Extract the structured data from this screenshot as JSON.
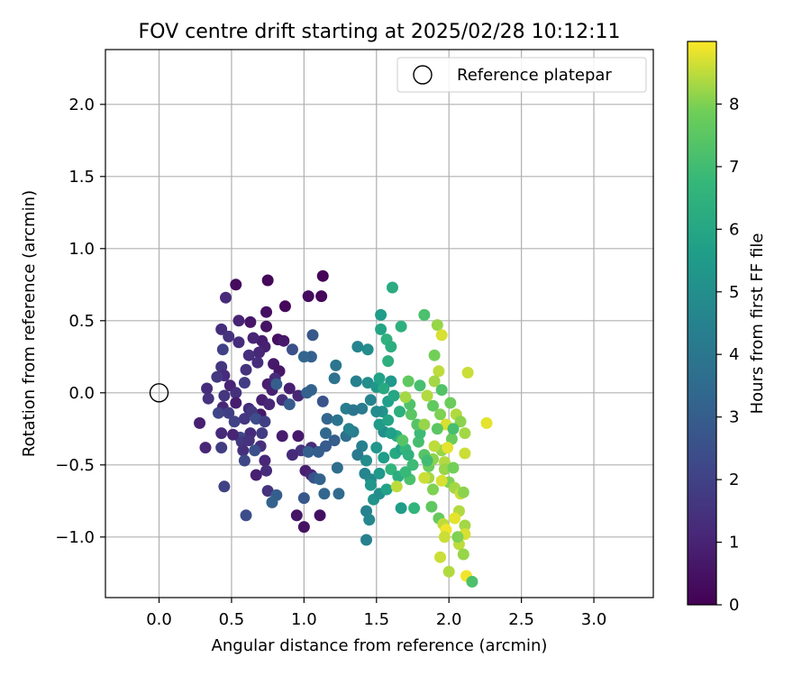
{
  "chart_data": {
    "type": "scatter",
    "title": "FOV centre drift starting at 2025/02/28 10:12:11",
    "xlabel": "Angular distance from reference (arcmin)",
    "ylabel": "Rotation from reference (arcmin)",
    "xlim": [
      -0.37,
      3.41
    ],
    "ylim": [
      -1.42,
      2.38
    ],
    "x_ticks": [
      0.0,
      0.5,
      1.0,
      1.5,
      2.0,
      2.5,
      3.0
    ],
    "x_tick_labels": [
      "0.0",
      "0.5",
      "1.0",
      "1.5",
      "2.0",
      "2.5",
      "3.0"
    ],
    "y_ticks": [
      -1.0,
      -0.5,
      0.0,
      0.5,
      1.0,
      1.5,
      2.0
    ],
    "y_tick_labels": [
      "−1.0",
      "−0.5",
      "0.0",
      "0.5",
      "1.0",
      "1.5",
      "2.0"
    ],
    "grid": true,
    "legend": {
      "placement": "upper-right",
      "entries": [
        "Reference platepar"
      ]
    },
    "reference_point": {
      "x": 0.0,
      "y": 0.0
    },
    "colorbar": {
      "label": "Hours from first FF file",
      "colormap": "viridis",
      "range": [
        0,
        9
      ],
      "ticks": [
        0,
        1,
        2,
        3,
        4,
        5,
        6,
        7,
        8
      ],
      "tick_labels": [
        "0",
        "1",
        "2",
        "3",
        "4",
        "5",
        "6",
        "7",
        "8"
      ]
    },
    "series": [
      {
        "points": [
          [
            0.53,
            0.75,
            0.3
          ],
          [
            0.75,
            0.78,
            0.2
          ],
          [
            1.13,
            0.81,
            0.1
          ],
          [
            1.03,
            0.67,
            0.3
          ],
          [
            1.12,
            0.67,
            0.2
          ],
          [
            0.46,
            0.66,
            1.2
          ],
          [
            0.87,
            0.6,
            0.2
          ],
          [
            0.63,
            0.49,
            0.6
          ],
          [
            0.55,
            0.5,
            1.0
          ],
          [
            0.74,
            0.56,
            0.4
          ],
          [
            0.43,
            0.44,
            1.3
          ],
          [
            0.48,
            0.39,
            1.5
          ],
          [
            0.55,
            0.35,
            1.3
          ],
          [
            0.71,
            0.36,
            0.8
          ],
          [
            0.74,
            0.46,
            0.5
          ],
          [
            0.82,
            0.37,
            0.4
          ],
          [
            0.86,
            0.36,
            0.7
          ],
          [
            0.65,
            0.38,
            1.0
          ],
          [
            0.44,
            0.3,
            2.0
          ],
          [
            0.73,
            0.32,
            0.9
          ],
          [
            0.69,
            0.28,
            1.1
          ],
          [
            0.79,
            0.2,
            0.7
          ],
          [
            0.62,
            0.26,
            1.4
          ],
          [
            0.43,
            0.18,
            1.6
          ],
          [
            0.45,
            0.12,
            1.2
          ],
          [
            0.4,
            0.11,
            1.7
          ],
          [
            0.6,
            0.16,
            1.5
          ],
          [
            0.68,
            0.21,
            1.3
          ],
          [
            0.83,
            0.15,
            0.6
          ],
          [
            0.75,
            0.06,
            0.8
          ],
          [
            0.59,
            0.07,
            1.8
          ],
          [
            0.78,
            0.02,
            0.9
          ],
          [
            0.33,
            0.03,
            1.3
          ],
          [
            0.49,
            0.05,
            1.0
          ],
          [
            0.53,
            0.0,
            1.4
          ],
          [
            0.45,
            -0.02,
            1.6
          ],
          [
            0.34,
            -0.04,
            1.5
          ],
          [
            0.44,
            -0.1,
            1.1
          ],
          [
            0.53,
            -0.07,
            0.8
          ],
          [
            0.62,
            -0.11,
            1.2
          ],
          [
            0.71,
            -0.05,
            0.9
          ],
          [
            0.7,
            -0.15,
            0.7
          ],
          [
            0.59,
            -0.18,
            1.6
          ],
          [
            0.48,
            -0.14,
            1.9
          ],
          [
            0.41,
            -0.14,
            2.1
          ],
          [
            0.52,
            -0.2,
            2.0
          ],
          [
            0.64,
            -0.13,
            1.7
          ],
          [
            0.76,
            -0.08,
            1.1
          ],
          [
            0.63,
            -0.28,
            1.3
          ],
          [
            0.56,
            -0.31,
            2.2
          ],
          [
            0.67,
            -0.18,
            2.4
          ],
          [
            0.73,
            -0.2,
            1.9
          ],
          [
            0.57,
            -0.34,
            1.7
          ],
          [
            0.62,
            -0.33,
            1.5
          ],
          [
            0.71,
            -0.28,
            1.8
          ],
          [
            0.58,
            -0.4,
            1.4
          ],
          [
            0.51,
            -0.29,
            1.0
          ],
          [
            0.43,
            -0.28,
            1.2
          ],
          [
            0.32,
            -0.38,
            1.1
          ],
          [
            0.28,
            -0.21,
            0.9
          ],
          [
            0.43,
            -0.38,
            1.8
          ],
          [
            0.7,
            -0.37,
            1.4
          ],
          [
            0.66,
            -0.4,
            2.5
          ],
          [
            0.59,
            -0.47,
            2.2
          ],
          [
            0.73,
            -0.47,
            1.1
          ],
          [
            0.67,
            -0.57,
            0.9
          ],
          [
            0.74,
            -0.54,
            1.3
          ],
          [
            0.45,
            -0.65,
            2.0
          ],
          [
            0.75,
            -0.68,
            1.5
          ],
          [
            0.81,
            -0.71,
            3.0
          ],
          [
            0.78,
            -0.76,
            3.2
          ],
          [
            0.6,
            -0.85,
            2.4
          ],
          [
            0.95,
            -0.85,
            0.6
          ],
          [
            1.0,
            -0.93,
            0.5
          ],
          [
            1.11,
            -0.85,
            0.4
          ],
          [
            1.01,
            -0.54,
            0.9
          ],
          [
            1.05,
            -0.57,
            1.1
          ],
          [
            1.07,
            -0.59,
            2.6
          ],
          [
            0.98,
            -0.4,
            1.5
          ],
          [
            1.05,
            -0.38,
            1.3
          ],
          [
            0.92,
            -0.43,
            1.2
          ],
          [
            0.96,
            -0.3,
            0.7
          ],
          [
            0.85,
            -0.3,
            0.8
          ],
          [
            1.03,
            -0.41,
            3.1
          ],
          [
            1.1,
            -0.41,
            3.0
          ],
          [
            1.0,
            -0.73,
            2.8
          ],
          [
            1.11,
            -0.6,
            3.2
          ],
          [
            1.14,
            -0.7,
            3.3
          ],
          [
            1.15,
            -0.37,
            2.9
          ],
          [
            1.15,
            -0.28,
            3.4
          ],
          [
            1.23,
            -0.52,
            3.6
          ],
          [
            1.21,
            -0.33,
            3.0
          ],
          [
            1.24,
            -0.7,
            3.5
          ],
          [
            1.29,
            -0.3,
            3.7
          ],
          [
            1.16,
            -0.18,
            3.3
          ],
          [
            1.23,
            -0.19,
            3.9
          ],
          [
            1.21,
            0.1,
            3.8
          ],
          [
            1.22,
            0.19,
            4.0
          ],
          [
            1.29,
            -0.11,
            4.3
          ],
          [
            1.06,
            0.4,
            2.8
          ],
          [
            0.92,
            0.3,
            2.5
          ],
          [
            0.8,
            0.1,
            1.3
          ],
          [
            0.9,
            0.03,
            0.9
          ],
          [
            0.96,
            -0.02,
            1.1
          ],
          [
            0.85,
            -0.05,
            1.4
          ],
          [
            0.9,
            -0.08,
            2.9
          ],
          [
            1.02,
            0.0,
            3.1
          ],
          [
            1.05,
            0.02,
            3.2
          ],
          [
            1.05,
            0.25,
            3.1
          ],
          [
            1.0,
            0.25,
            3.3
          ],
          [
            0.81,
            0.06,
            3.0
          ],
          [
            1.13,
            -0.06,
            2.6
          ],
          [
            1.37,
            0.32,
            4.6
          ],
          [
            1.44,
            0.3,
            4.9
          ],
          [
            1.36,
            0.08,
            4.4
          ],
          [
            1.44,
            0.07,
            5.0
          ],
          [
            1.5,
            0.04,
            5.3
          ],
          [
            1.46,
            -0.05,
            4.6
          ],
          [
            1.4,
            -0.11,
            4.2
          ],
          [
            1.34,
            -0.12,
            4.0
          ],
          [
            1.34,
            -0.27,
            4.3
          ],
          [
            1.31,
            -0.25,
            4.5
          ],
          [
            1.4,
            -0.37,
            4.4
          ],
          [
            1.37,
            -0.43,
            4.1
          ],
          [
            1.43,
            -0.47,
            4.9
          ],
          [
            1.42,
            -0.56,
            4.6
          ],
          [
            1.46,
            -0.6,
            4.8
          ],
          [
            1.43,
            -0.82,
            4.5
          ],
          [
            1.45,
            -0.88,
            4.7
          ],
          [
            1.43,
            -1.02,
            4.4
          ],
          [
            1.48,
            -0.74,
            5.2
          ],
          [
            1.52,
            -0.7,
            5.0
          ],
          [
            1.46,
            -0.64,
            5.3
          ],
          [
            1.52,
            -0.56,
            5.4
          ],
          [
            1.57,
            -0.67,
            5.8
          ],
          [
            1.55,
            -0.45,
            5.6
          ],
          [
            1.5,
            -0.38,
            5.3
          ],
          [
            1.55,
            -0.27,
            5.0
          ],
          [
            1.52,
            -0.22,
            5.5
          ],
          [
            1.54,
            -0.13,
            5.2
          ],
          [
            1.5,
            -0.13,
            4.9
          ],
          [
            1.58,
            -0.06,
            5.7
          ],
          [
            1.58,
            -0.19,
            5.9
          ],
          [
            1.58,
            0.22,
            6.4
          ],
          [
            1.57,
            0.37,
            6.5
          ],
          [
            1.53,
            0.44,
            5.9
          ],
          [
            1.53,
            0.54,
            5.6
          ],
          [
            1.6,
            0.32,
            6.3
          ],
          [
            1.61,
            0.73,
            6.2
          ],
          [
            1.67,
            0.46,
            6.4
          ],
          [
            1.6,
            0.08,
            5.4
          ],
          [
            1.52,
            0.1,
            5.8
          ],
          [
            1.55,
            0.03,
            6.1
          ],
          [
            1.62,
            -0.02,
            6.0
          ],
          [
            1.66,
            -0.13,
            6.4
          ],
          [
            1.64,
            -0.3,
            6.3
          ],
          [
            1.6,
            -0.28,
            5.7
          ],
          [
            1.63,
            -0.42,
            6.1
          ],
          [
            1.67,
            -0.39,
            5.8
          ],
          [
            1.7,
            -0.39,
            6.7
          ],
          [
            1.72,
            -0.43,
            6.5
          ],
          [
            1.6,
            -0.53,
            6.6
          ],
          [
            1.65,
            -0.58,
            6.3
          ],
          [
            1.67,
            -0.8,
            5.6
          ],
          [
            1.76,
            -0.8,
            6.6
          ],
          [
            1.73,
            -0.6,
            7.2
          ],
          [
            1.75,
            -0.5,
            6.9
          ],
          [
            1.79,
            -0.34,
            7.1
          ],
          [
            1.8,
            -0.28,
            6.9
          ],
          [
            1.78,
            -0.22,
            7.4
          ],
          [
            1.74,
            -0.15,
            7.5
          ],
          [
            1.73,
            -0.08,
            7.3
          ],
          [
            1.72,
            0.08,
            7.6
          ],
          [
            1.8,
            0.05,
            7.1
          ],
          [
            1.83,
            0.54,
            7.2
          ],
          [
            1.92,
            0.47,
            8.2
          ],
          [
            1.95,
            0.4,
            8.7
          ],
          [
            1.9,
            0.26,
            7.9
          ],
          [
            1.93,
            0.15,
            8.5
          ],
          [
            1.9,
            0.08,
            8.3
          ],
          [
            2.13,
            0.14,
            8.6
          ],
          [
            2.26,
            -0.21,
            8.8
          ],
          [
            1.85,
            -0.02,
            8.4
          ],
          [
            1.89,
            -0.09,
            7.6
          ],
          [
            1.94,
            -0.15,
            8.0
          ],
          [
            1.98,
            -0.22,
            8.7
          ],
          [
            2.05,
            -0.15,
            8.4
          ],
          [
            2.08,
            -0.2,
            8.1
          ],
          [
            2.11,
            -0.28,
            8.3
          ],
          [
            2.02,
            -0.32,
            7.8
          ],
          [
            1.95,
            -0.4,
            8.2
          ],
          [
            2.11,
            -0.42,
            8.6
          ],
          [
            1.99,
            -0.38,
            8.8
          ],
          [
            1.97,
            -0.48,
            8.4
          ],
          [
            1.97,
            -0.53,
            8.2
          ],
          [
            2.03,
            -0.52,
            7.9
          ],
          [
            2.0,
            -0.62,
            8.0
          ],
          [
            1.95,
            -0.61,
            8.7
          ],
          [
            2.04,
            -0.66,
            8.3
          ],
          [
            2.08,
            -0.7,
            8.6
          ],
          [
            2.1,
            -0.69,
            8.1
          ],
          [
            2.07,
            -0.82,
            8.4
          ],
          [
            2.04,
            -0.87,
            8.8
          ],
          [
            1.93,
            -0.87,
            7.7
          ],
          [
            1.96,
            -0.91,
            8.5
          ],
          [
            1.98,
            -0.95,
            8.9
          ],
          [
            1.97,
            -1.0,
            8.6
          ],
          [
            2.11,
            -0.92,
            8.3
          ],
          [
            2.11,
            -0.98,
            8.7
          ],
          [
            2.07,
            -1.05,
            8.5
          ],
          [
            2.1,
            -1.12,
            8.2
          ],
          [
            1.94,
            -1.14,
            8.6
          ],
          [
            2.0,
            -1.24,
            8.4
          ],
          [
            2.12,
            -1.27,
            8.9
          ],
          [
            2.16,
            -1.31,
            7.2
          ],
          [
            2.06,
            -1.0,
            8.0
          ],
          [
            1.86,
            -0.59,
            8.3
          ],
          [
            1.86,
            -0.51,
            7.8
          ],
          [
            1.89,
            -0.46,
            8.1
          ],
          [
            1.9,
            -0.37,
            8.5
          ],
          [
            1.83,
            -0.43,
            7.4
          ],
          [
            1.85,
            -0.47,
            7.0
          ],
          [
            1.83,
            -0.22,
            8.2
          ],
          [
            1.92,
            -0.25,
            7.5
          ],
          [
            2.03,
            -0.25,
            7.1
          ],
          [
            2.01,
            -0.07,
            7.8
          ],
          [
            1.95,
            0.02,
            7.3
          ],
          [
            1.7,
            -0.03,
            8.3
          ],
          [
            1.7,
            -0.55,
            6.8
          ],
          [
            1.68,
            -0.33,
            7.4
          ],
          [
            1.83,
            -0.59,
            8.6
          ],
          [
            1.89,
            -0.67,
            8.0
          ],
          [
            1.88,
            -0.79,
            7.6
          ],
          [
            1.64,
            -0.65,
            8.5
          ]
        ]
      }
    ]
  }
}
